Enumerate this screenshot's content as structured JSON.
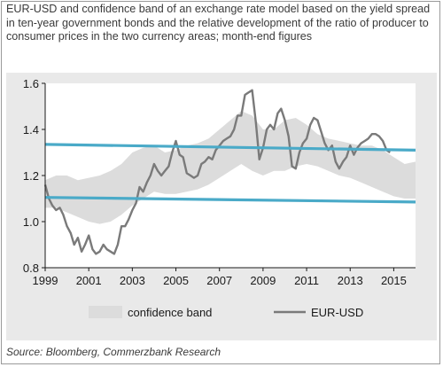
{
  "title": "EUR-USD and confidence band of an exchange rate model based on the yield spread in ten-year government bonds and the relative development of the ratio of producer to consumer prices in the two currency areas; month-end figures",
  "source": "Source: Bloomberg, Commerzbank Research",
  "colors": {
    "band": "#dcdcdc",
    "eurusd": "#7a7a7a",
    "trend_lines": "#4aaac8",
    "panel_background": "#e9e9e9",
    "plot_background": "#ffffff"
  },
  "chart_data": {
    "type": "line",
    "xlim": [
      1999,
      2016
    ],
    "ylim": [
      0.8,
      1.6
    ],
    "x_ticks": [
      "1999",
      "2001",
      "2003",
      "2005",
      "2007",
      "2009",
      "2011",
      "2013",
      "2015"
    ],
    "y_ticks": [
      "0.8",
      "1.0",
      "1.2",
      "1.4",
      "1.6"
    ],
    "legend": {
      "position": "bottom",
      "entries": [
        "confidence band",
        "EUR-USD"
      ]
    },
    "band": {
      "x": [
        1999,
        1999.5,
        2000,
        2000.5,
        2001,
        2001.5,
        2002,
        2002.5,
        2003,
        2003.5,
        2004,
        2004.5,
        2005,
        2005.5,
        2006,
        2006.5,
        2007,
        2007.5,
        2008,
        2008.5,
        2009,
        2009.5,
        2010,
        2010.5,
        2011,
        2011.5,
        2012,
        2012.5,
        2013,
        2013.5,
        2014,
        2014.5,
        2015,
        2015.5,
        2016
      ],
      "upper": [
        1.18,
        1.2,
        1.2,
        1.18,
        1.19,
        1.2,
        1.22,
        1.25,
        1.3,
        1.32,
        1.33,
        1.3,
        1.31,
        1.33,
        1.34,
        1.36,
        1.4,
        1.44,
        1.48,
        1.46,
        1.4,
        1.4,
        1.44,
        1.45,
        1.42,
        1.38,
        1.36,
        1.35,
        1.34,
        1.33,
        1.33,
        1.31,
        1.28,
        1.25,
        1.26
      ],
      "lower": [
        1.06,
        1.06,
        1.04,
        1.02,
        1.0,
        0.99,
        1.0,
        1.03,
        1.07,
        1.1,
        1.13,
        1.12,
        1.12,
        1.13,
        1.14,
        1.16,
        1.19,
        1.22,
        1.25,
        1.22,
        1.2,
        1.22,
        1.22,
        1.24,
        1.25,
        1.24,
        1.22,
        1.2,
        1.19,
        1.17,
        1.15,
        1.13,
        1.11,
        1.1,
        1.1
      ]
    },
    "series": [
      {
        "name": "EUR-USD",
        "x": [
          1999,
          1999.17,
          1999.33,
          1999.5,
          1999.67,
          1999.83,
          2000,
          2000.17,
          2000.33,
          2000.5,
          2000.67,
          2000.83,
          2001,
          2001.17,
          2001.33,
          2001.5,
          2001.67,
          2001.83,
          2002,
          2002.17,
          2002.33,
          2002.5,
          2002.67,
          2002.83,
          2003,
          2003.17,
          2003.33,
          2003.5,
          2003.67,
          2003.83,
          2004,
          2004.17,
          2004.33,
          2004.5,
          2004.67,
          2004.83,
          2005,
          2005.17,
          2005.33,
          2005.5,
          2005.67,
          2005.83,
          2006,
          2006.17,
          2006.33,
          2006.5,
          2006.67,
          2006.83,
          2007,
          2007.17,
          2007.33,
          2007.5,
          2007.67,
          2007.83,
          2008,
          2008.17,
          2008.33,
          2008.5,
          2008.67,
          2008.83,
          2009,
          2009.17,
          2009.33,
          2009.5,
          2009.67,
          2009.83,
          2010,
          2010.17,
          2010.33,
          2010.5,
          2010.67,
          2010.83,
          2011,
          2011.17,
          2011.33,
          2011.5,
          2011.67,
          2011.83,
          2012,
          2012.17,
          2012.33,
          2012.5,
          2012.67,
          2012.83,
          2013,
          2013.17,
          2013.33,
          2013.5,
          2013.67,
          2013.83,
          2014,
          2014.17,
          2014.33,
          2014.5,
          2014.67,
          2014.83
        ],
        "y": [
          1.16,
          1.1,
          1.07,
          1.05,
          1.06,
          1.03,
          0.98,
          0.95,
          0.9,
          0.93,
          0.87,
          0.9,
          0.94,
          0.88,
          0.86,
          0.87,
          0.9,
          0.88,
          0.87,
          0.86,
          0.9,
          0.98,
          0.98,
          1.01,
          1.05,
          1.08,
          1.15,
          1.13,
          1.17,
          1.2,
          1.25,
          1.22,
          1.2,
          1.22,
          1.24,
          1.3,
          1.35,
          1.29,
          1.28,
          1.21,
          1.2,
          1.19,
          1.2,
          1.25,
          1.26,
          1.28,
          1.27,
          1.31,
          1.33,
          1.35,
          1.36,
          1.37,
          1.4,
          1.46,
          1.46,
          1.55,
          1.56,
          1.57,
          1.43,
          1.27,
          1.32,
          1.4,
          1.42,
          1.4,
          1.47,
          1.49,
          1.44,
          1.37,
          1.24,
          1.23,
          1.3,
          1.34,
          1.36,
          1.42,
          1.45,
          1.44,
          1.39,
          1.34,
          1.31,
          1.33,
          1.26,
          1.23,
          1.26,
          1.28,
          1.33,
          1.29,
          1.32,
          1.34,
          1.35,
          1.36,
          1.38,
          1.38,
          1.37,
          1.35,
          1.31,
          1.3
        ]
      }
    ],
    "trend_lines": [
      {
        "x": [
          1999,
          2016
        ],
        "y": [
          1.335,
          1.31
        ]
      },
      {
        "x": [
          1999,
          2016
        ],
        "y": [
          1.105,
          1.085
        ]
      }
    ]
  }
}
